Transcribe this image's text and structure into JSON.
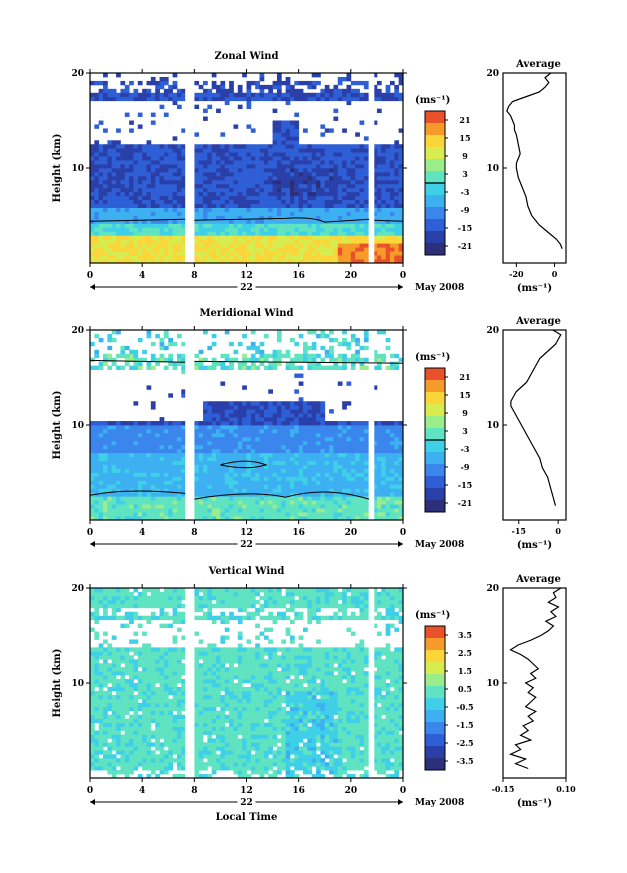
{
  "chart_data": [
    {
      "type": "heatmap",
      "title": "Zonal Wind",
      "ylabel": "Height (km)",
      "xticks": [
        "0",
        "4",
        "8",
        "12",
        "16",
        "20",
        "0"
      ],
      "yticks": [
        "10",
        "20"
      ],
      "ylim": [
        0,
        20
      ],
      "xlim": [
        0,
        24
      ],
      "day_label": "22",
      "month_label": "May 2008",
      "unit": "(ms⁻¹)",
      "colorbar_ticks": [
        "21",
        "15",
        "9",
        "3",
        "-3",
        "-9",
        "-15",
        "-21"
      ],
      "data_gaps_hours": [
        [
          7.3,
          8.0
        ],
        [
          21.4,
          21.8
        ]
      ],
      "profile": {
        "title": "Average",
        "xticks": [
          "-20",
          "0"
        ],
        "yticks": [
          "10",
          "20"
        ],
        "xlim": [
          -27,
          6
        ],
        "xlabel": "(ms⁻¹)",
        "height": [
          1.5,
          2,
          2.5,
          3,
          3.5,
          4,
          4.5,
          5,
          5.5,
          6,
          6.5,
          7,
          7.5,
          8,
          8.5,
          9,
          9.5,
          10,
          10.5,
          11,
          11.5,
          12,
          12.5,
          13,
          13.5,
          14,
          14.5,
          15,
          15.5,
          16,
          16.5,
          17,
          17.5,
          18,
          18.5,
          19,
          19.5,
          20
        ],
        "value": [
          4,
          3,
          1,
          -2,
          -5,
          -8,
          -10,
          -12,
          -13,
          -14,
          -14.5,
          -15,
          -16,
          -17,
          -18,
          -19,
          -19.5,
          -20,
          -20,
          -19,
          -18,
          -18.5,
          -19,
          -19.5,
          -20,
          -21,
          -21,
          -22,
          -23,
          -25,
          -24,
          -22,
          -15,
          -8,
          -5,
          -3,
          -5,
          -2
        ]
      }
    },
    {
      "type": "heatmap",
      "title": "Meridional Wind",
      "ylabel": "Height (km)",
      "xticks": [
        "0",
        "4",
        "8",
        "12",
        "16",
        "20",
        "0"
      ],
      "yticks": [
        "10",
        "20"
      ],
      "ylim": [
        0,
        20
      ],
      "xlim": [
        0,
        24
      ],
      "day_label": "22",
      "month_label": "May 2008",
      "unit": "(ms⁻¹)",
      "colorbar_ticks": [
        "21",
        "15",
        "9",
        "3",
        "-3",
        "-9",
        "-15",
        "-21"
      ],
      "data_gaps_hours": [
        [
          7.3,
          8.0
        ],
        [
          21.4,
          21.8
        ]
      ],
      "profile": {
        "title": "Average",
        "xticks": [
          "-15",
          "0"
        ],
        "yticks": [
          "10",
          "20"
        ],
        "xlim": [
          -21,
          3
        ],
        "xlabel": "(ms⁻¹)",
        "height": [
          1.5,
          2,
          2.5,
          3,
          3.5,
          4,
          4.5,
          5,
          5.5,
          6,
          6.5,
          7,
          7.5,
          8,
          8.5,
          9,
          9.5,
          10,
          10.5,
          11,
          11.5,
          12,
          12.5,
          13,
          13.5,
          14,
          14.5,
          15,
          15.5,
          16,
          16.5,
          17,
          17.5,
          18,
          18.5,
          19,
          19.5,
          20
        ],
        "value": [
          -1,
          -1.5,
          -2,
          -2.5,
          -3,
          -3.5,
          -4,
          -5,
          -6,
          -6.5,
          -7,
          -8,
          -9,
          -10,
          -11,
          -12,
          -13,
          -14,
          -15,
          -16,
          -17,
          -18,
          -18,
          -17,
          -16,
          -14,
          -12,
          -11,
          -10,
          -9,
          -8,
          -7,
          -5,
          -3,
          -1,
          0,
          1,
          -2
        ]
      }
    },
    {
      "type": "heatmap",
      "title": "Vertical Wind",
      "ylabel": "Height (km)",
      "xlabel": "Local Time",
      "xticks": [
        "0",
        "4",
        "8",
        "12",
        "16",
        "20",
        "0"
      ],
      "yticks": [
        "10",
        "20"
      ],
      "ylim": [
        0,
        20
      ],
      "xlim": [
        0,
        24
      ],
      "day_label": "22",
      "month_label": "May 2008",
      "unit": "(ms⁻¹)",
      "colorbar_ticks": [
        "3.5",
        "2.5",
        "1.5",
        "0.5",
        "-0.5",
        "-1.5",
        "-2.5",
        "-3.5"
      ],
      "data_gaps_hours": [
        [
          7.3,
          8.0
        ],
        [
          21.4,
          21.8
        ]
      ],
      "profile": {
        "title": "Average",
        "xticks": [
          "-0.15",
          "0.10"
        ],
        "yticks": [
          "10",
          "20"
        ],
        "xlim": [
          -0.15,
          0.1
        ],
        "xlabel": "(ms⁻¹)",
        "height": [
          1,
          1.5,
          2,
          2.5,
          3,
          3.5,
          4,
          4.5,
          5,
          5.5,
          6,
          6.5,
          7,
          7.5,
          8,
          8.5,
          9,
          9.5,
          10,
          10.5,
          11,
          11.5,
          12,
          12.5,
          13,
          13.5,
          14,
          14.5,
          15,
          15.5,
          16,
          16.5,
          17,
          17.5,
          18,
          18.5,
          19,
          19.5,
          20
        ],
        "value": [
          -0.05,
          -0.1,
          -0.06,
          -0.12,
          -0.08,
          -0.1,
          -0.04,
          -0.08,
          -0.05,
          -0.07,
          -0.03,
          -0.05,
          -0.02,
          -0.06,
          -0.04,
          -0.02,
          -0.05,
          -0.03,
          -0.06,
          -0.02,
          -0.04,
          -0.01,
          -0.03,
          -0.05,
          -0.08,
          -0.12,
          -0.09,
          -0.04,
          0.0,
          0.03,
          0.05,
          0.02,
          0.06,
          0.04,
          0.07,
          0.03,
          0.06,
          0.05,
          0.08
        ]
      }
    }
  ]
}
